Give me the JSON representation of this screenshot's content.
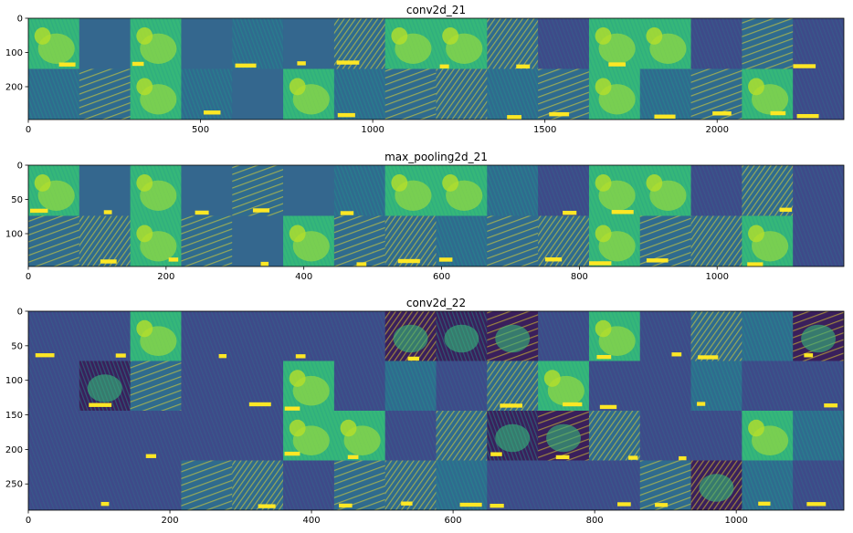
{
  "chart_data": [
    {
      "type": "heatmap",
      "title": "conv2d_21",
      "grid_rows": 2,
      "grid_cols": 16,
      "x_range": [
        0,
        2368
      ],
      "y_range": [
        296,
        0
      ],
      "x_ticks": [
        0,
        500,
        1000,
        1500,
        2000
      ],
      "y_ticks": [
        0,
        100,
        200
      ],
      "grid": false,
      "tile_tones": [
        [
          1,
          0,
          1,
          0,
          3,
          0,
          3,
          1,
          1,
          3,
          2,
          1,
          1,
          2,
          3,
          2
        ],
        [
          3,
          3,
          1,
          3,
          0,
          1,
          3,
          3,
          3,
          3,
          3,
          1,
          3,
          3,
          1,
          2
        ]
      ]
    },
    {
      "type": "heatmap",
      "title": "max_pooling2d_21",
      "grid_rows": 2,
      "grid_cols": 16,
      "x_range": [
        0,
        1184
      ],
      "y_range": [
        148,
        0
      ],
      "x_ticks": [
        0,
        200,
        400,
        600,
        800,
        1000
      ],
      "y_ticks": [
        0,
        50,
        100
      ],
      "grid": false,
      "tile_tones": [
        [
          1,
          0,
          1,
          0,
          3,
          0,
          3,
          1,
          1,
          3,
          2,
          1,
          1,
          2,
          3,
          2
        ],
        [
          3,
          3,
          1,
          3,
          0,
          1,
          3,
          3,
          3,
          3,
          3,
          1,
          3,
          3,
          1,
          2
        ]
      ]
    },
    {
      "type": "heatmap",
      "title": "conv2d_22",
      "grid_rows": 4,
      "grid_cols": 16,
      "x_range": [
        0,
        1152
      ],
      "y_range": [
        288,
        0
      ],
      "x_ticks": [
        0,
        200,
        400,
        600,
        800,
        1000
      ],
      "y_ticks": [
        0,
        50,
        100,
        150,
        200,
        250
      ],
      "grid": false,
      "tile_tones": [
        [
          2,
          2,
          1,
          2,
          2,
          2,
          2,
          4,
          4,
          4,
          2,
          1,
          2,
          3,
          3,
          4
        ],
        [
          2,
          4,
          3,
          2,
          2,
          1,
          2,
          3,
          2,
          3,
          1,
          2,
          2,
          3,
          2,
          2
        ],
        [
          2,
          2,
          2,
          2,
          2,
          1,
          1,
          2,
          3,
          4,
          4,
          3,
          2,
          2,
          1,
          3
        ],
        [
          2,
          2,
          2,
          3,
          3,
          2,
          3,
          3,
          3,
          2,
          2,
          2,
          3,
          4,
          3,
          2
        ]
      ]
    }
  ],
  "colors": {
    "tones": [
      "#3b5a8f",
      "#35b779",
      "#3e4a89",
      "#2f6b8e",
      "#3a1f5c"
    ],
    "bright": "#fde725",
    "dark": "#440154",
    "mid": "#21918c"
  }
}
